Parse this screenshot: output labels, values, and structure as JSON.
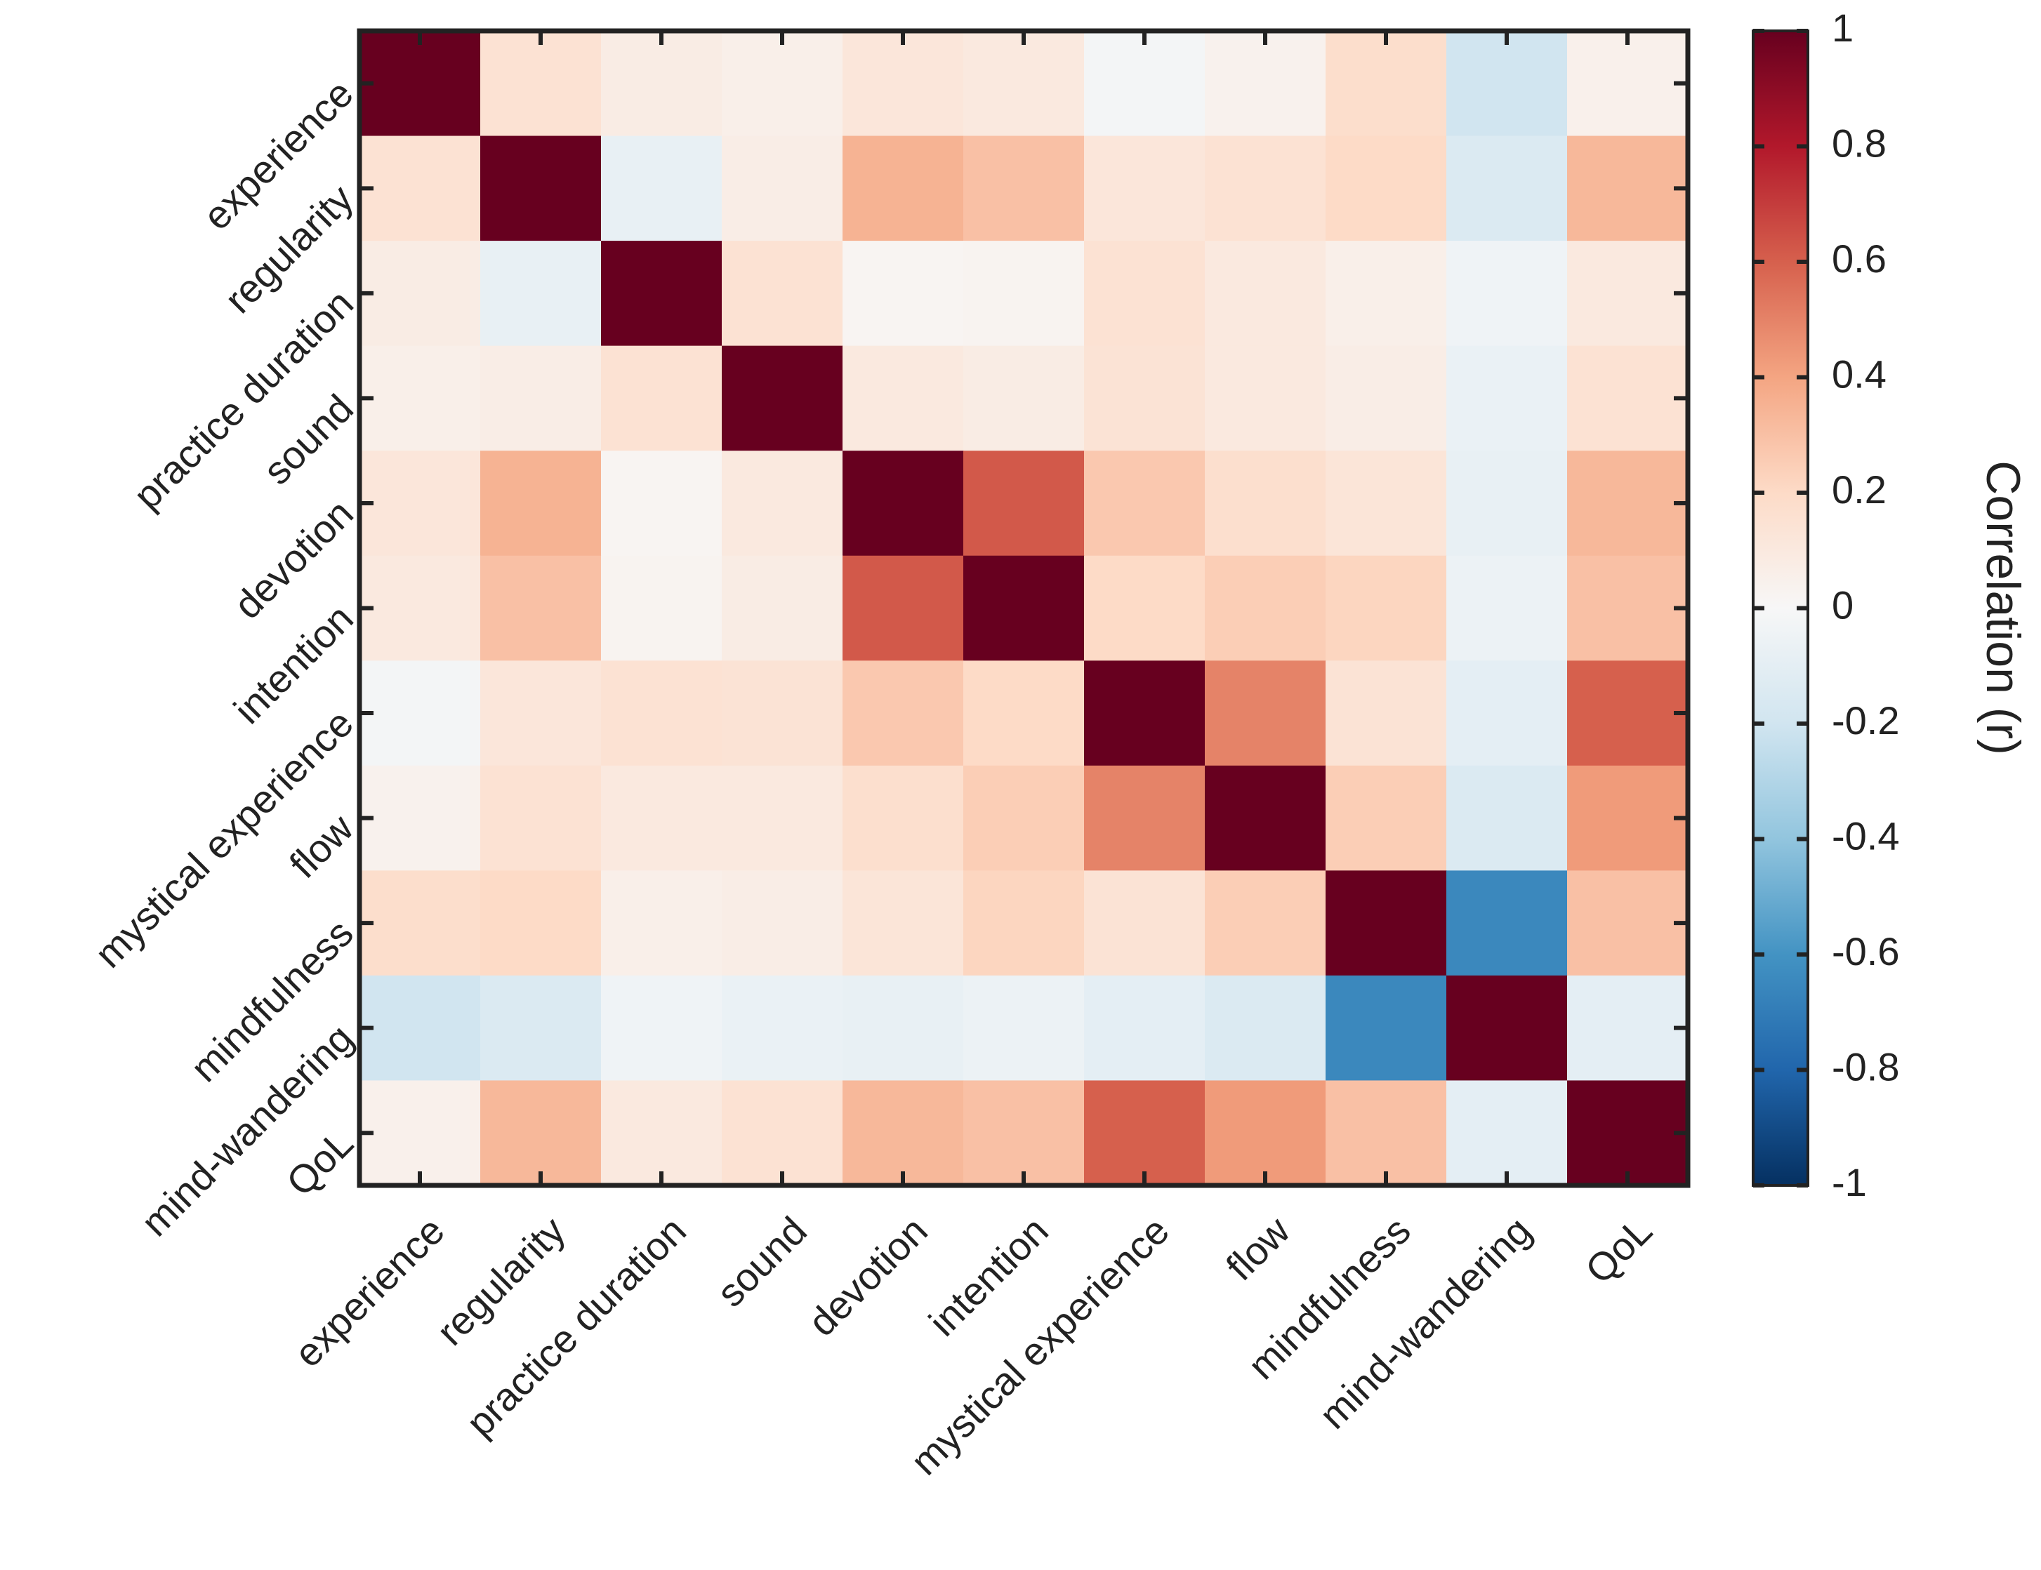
{
  "chart_data": {
    "type": "heatmap",
    "title": "",
    "labels": [
      "experience",
      "regularity",
      "practice duration",
      "sound",
      "devotion",
      "intention",
      "mystical experience",
      "flow",
      "mindfulness",
      "mind-wandering",
      "QoL"
    ],
    "matrix": [
      [
        1.0,
        0.15,
        0.08,
        0.06,
        0.12,
        0.1,
        -0.02,
        0.04,
        0.18,
        -0.2,
        0.05
      ],
      [
        0.15,
        1.0,
        -0.08,
        0.07,
        0.35,
        0.3,
        0.12,
        0.15,
        0.2,
        -0.15,
        0.33
      ],
      [
        0.08,
        -0.08,
        1.0,
        0.15,
        0.02,
        0.03,
        0.15,
        0.1,
        0.06,
        -0.04,
        0.1
      ],
      [
        0.06,
        0.07,
        0.15,
        1.0,
        0.1,
        0.08,
        0.14,
        0.1,
        0.07,
        -0.07,
        0.15
      ],
      [
        0.12,
        0.35,
        0.02,
        0.1,
        1.0,
        0.62,
        0.27,
        0.17,
        0.13,
        -0.08,
        0.33
      ],
      [
        0.1,
        0.3,
        0.03,
        0.08,
        0.62,
        1.0,
        0.2,
        0.25,
        0.22,
        -0.06,
        0.3
      ],
      [
        -0.02,
        0.12,
        0.15,
        0.14,
        0.27,
        0.2,
        1.0,
        0.5,
        0.14,
        -0.1,
        0.6
      ],
      [
        0.04,
        0.15,
        0.1,
        0.1,
        0.17,
        0.25,
        0.5,
        1.0,
        0.25,
        -0.15,
        0.43
      ],
      [
        0.18,
        0.2,
        0.06,
        0.07,
        0.13,
        0.22,
        0.14,
        0.25,
        1.0,
        -0.65,
        0.3
      ],
      [
        -0.2,
        -0.15,
        -0.04,
        -0.07,
        -0.08,
        -0.06,
        -0.1,
        -0.15,
        -0.65,
        1.0,
        -0.1
      ],
      [
        0.05,
        0.33,
        0.1,
        0.15,
        0.33,
        0.3,
        0.6,
        0.43,
        0.3,
        -0.1,
        1.0
      ]
    ],
    "colorbar": {
      "label": "Correlation (r)",
      "range": [
        -1,
        1
      ],
      "ticks": [
        "1",
        "0.8",
        "0.6",
        "0.4",
        "0.2",
        "0",
        "-0.2",
        "-0.4",
        "-0.6",
        "-0.8",
        "-1"
      ],
      "colormap": [
        "#053061",
        "#2166ac",
        "#4393c3",
        "#92c5de",
        "#d1e5f0",
        "#f7f7f7",
        "#fddbc7",
        "#f4a582",
        "#d6604d",
        "#b2182b",
        "#67001f"
      ]
    }
  }
}
